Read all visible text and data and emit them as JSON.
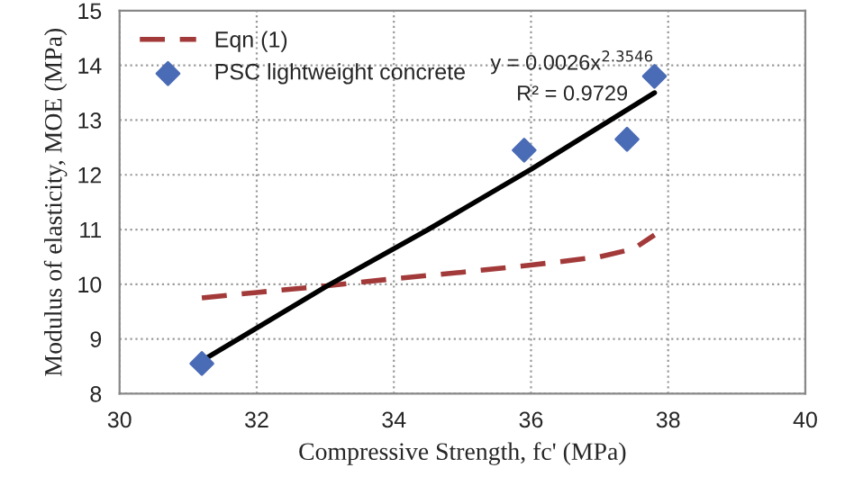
{
  "chart_data": {
    "type": "scatter",
    "xlabel": "Compressive Strength, fc' (MPa)",
    "ylabel": "Modulus of elasticity, MOE (MPa)",
    "xlim": [
      30,
      40
    ],
    "xticks": [
      30,
      32,
      34,
      36,
      38,
      40
    ],
    "ylim": [
      8,
      15
    ],
    "yticks": [
      8,
      9,
      10,
      11,
      12,
      13,
      14,
      15
    ],
    "grid": true,
    "legend": "top left",
    "series": [
      {
        "name": "Eqn (1)",
        "type": "line",
        "line_style": "dashed",
        "marker": "none",
        "color": "#a33a3a",
        "x": [
          31.2,
          32,
          33,
          34,
          35,
          36,
          37,
          37.5,
          37.8
        ],
        "values": [
          9.75,
          9.85,
          9.97,
          10.1,
          10.22,
          10.35,
          10.5,
          10.65,
          10.9
        ]
      },
      {
        "name": "PSC lightweight concrete",
        "marker": "diamond",
        "color": "#4a6bb5",
        "x": [
          31.2,
          35.9,
          37.4,
          37.8
        ],
        "values": [
          8.55,
          12.45,
          12.65,
          13.8
        ]
      },
      {
        "type": "line",
        "line_style": "solid",
        "marker": "none",
        "color": "#000000",
        "x": [
          31.2,
          33,
          34.5,
          36,
          37.8
        ],
        "values": [
          8.6,
          9.95,
          11.0,
          12.1,
          13.5
        ]
      }
    ],
    "annotations": [
      "y = 0.0026x$^{2.3546}$",
      "R² = 0.9729"
    ]
  }
}
